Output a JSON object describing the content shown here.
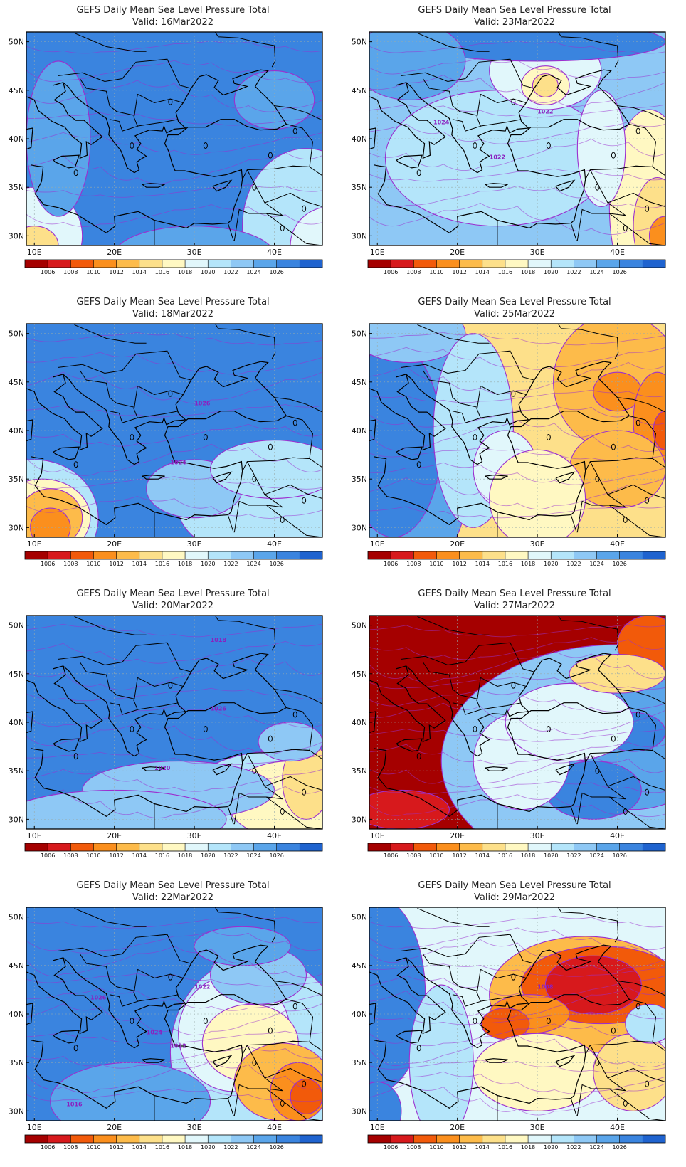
{
  "figure": {
    "title_template": "GEFS Daily Mean Sea Level Pressure Total",
    "variable": "Mean Sea Level Pressure",
    "model": "GEFS"
  },
  "axes": {
    "x_ticks": [
      "10E",
      "20E",
      "30E",
      "40E"
    ],
    "y_ticks": [
      "50N",
      "45N",
      "40N",
      "35N",
      "30N"
    ],
    "lon_range": [
      9,
      46
    ],
    "lat_range": [
      29,
      51
    ]
  },
  "colorbar": {
    "labels": [
      "1006",
      "1008",
      "1010",
      "1012",
      "1014",
      "1016",
      "1018",
      "1020",
      "1022",
      "1024",
      "1026"
    ],
    "colors": [
      "#a50000",
      "#d7191c",
      "#f25a0a",
      "#fb8f1d",
      "#fdbb4a",
      "#fde08a",
      "#fff8c2",
      "#e1f7fb",
      "#b4e5fa",
      "#8ec8f5",
      "#5aa5ea",
      "#3a84df",
      "#1f63cf"
    ]
  },
  "contour_line_color": "#9b2fcf",
  "panels": [
    {
      "id": "p1",
      "title": "GEFS Daily Mean Sea Level Pressure Total",
      "valid": "Valid: 16Mar2022",
      "labels": []
    },
    {
      "id": "p2",
      "title": "GEFS Daily Mean Sea Level Pressure Total",
      "valid": "Valid: 23Mar2022",
      "labels": [
        "1024",
        "1022",
        "1022"
      ]
    },
    {
      "id": "p3",
      "title": "GEFS Daily Mean Sea Level Pressure Total",
      "valid": "Valid: 18Mar2022",
      "labels": [
        "1026",
        "1024"
      ]
    },
    {
      "id": "p4",
      "title": "GEFS Daily Mean Sea Level Pressure Total",
      "valid": "Valid: 25Mar2022",
      "labels": []
    },
    {
      "id": "p5",
      "title": "GEFS Daily Mean Sea Level Pressure Total",
      "valid": "Valid: 20Mar2022",
      "labels": [
        "1026",
        "1020",
        "1018"
      ]
    },
    {
      "id": "p6",
      "title": "GEFS Daily Mean Sea Level Pressure Total",
      "valid": "Valid: 27Mar2022",
      "labels": []
    },
    {
      "id": "p7",
      "title": "GEFS Daily Mean Sea Level Pressure Total",
      "valid": "Valid: 22Mar2022",
      "labels": [
        "1026",
        "1024",
        "1022",
        "1022",
        "1016"
      ]
    },
    {
      "id": "p8",
      "title": "GEFS Daily Mean Sea Level Pressure Total",
      "valid": "Valid: 29Mar2022",
      "labels": [
        "1008"
      ]
    }
  ]
}
